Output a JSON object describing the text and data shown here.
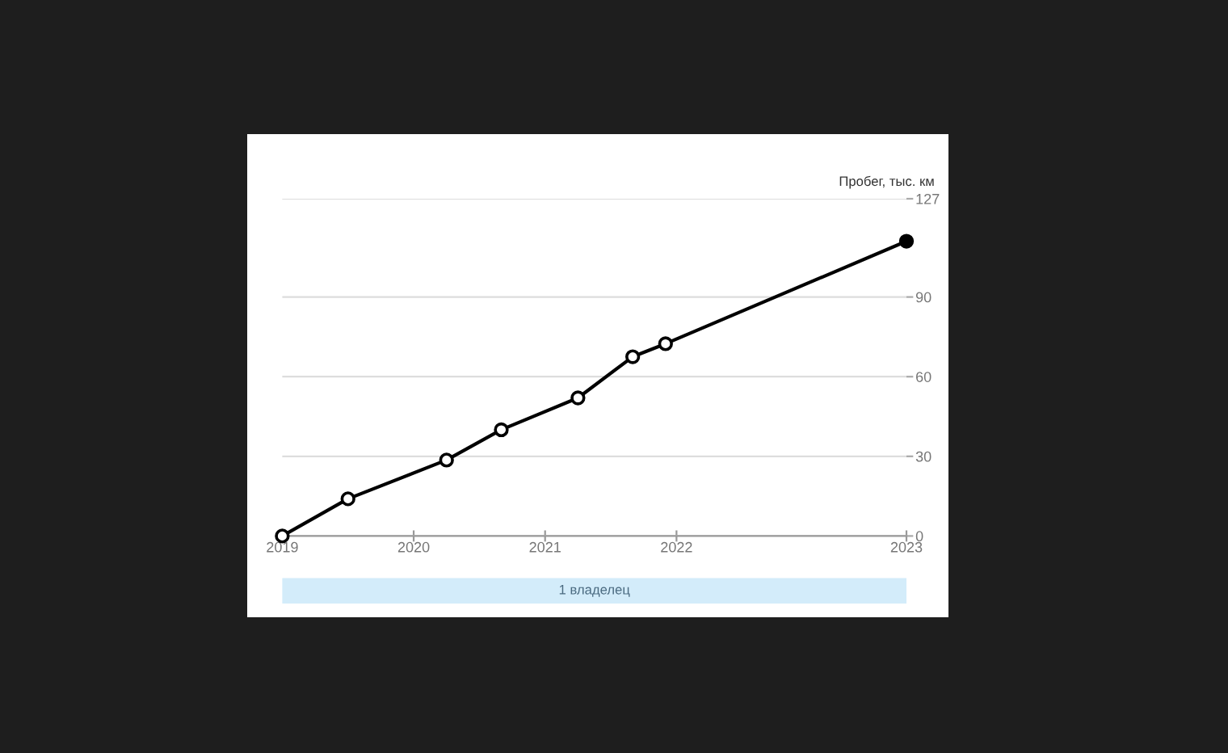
{
  "chart_data": {
    "type": "line",
    "ylabel": "Пробег, тыс. км",
    "x": [
      "2019-01",
      "2019-07",
      "2020-04",
      "2020-09",
      "2021-04",
      "2021-09",
      "2021-12",
      "2023-10"
    ],
    "series": [
      {
        "color": "#000000",
        "values": [
          0,
          14,
          28.6,
          40,
          52,
          67.5,
          72.4,
          111
        ],
        "colors": [
          "#ffffff",
          "#ffffff",
          "#ffffff",
          "#ffffff",
          "#ffffff",
          "#ffffff",
          "#ffffff",
          "#000000"
        ]
      }
    ],
    "xlim": [
      "2019-01",
      "2023-10"
    ],
    "xticks": [
      "2019",
      "2020",
      "2021",
      "2022",
      {
        "value": "2023-10",
        "label": "2023"
      }
    ],
    "ylim": [
      0,
      127
    ],
    "yticks": [
      0,
      30,
      60,
      90,
      127
    ],
    "bands": [
      {
        "axis": "x",
        "from": "2019-01",
        "to": "2023-10",
        "label": "1 владелец"
      }
    ],
    "grid": "y",
    "marker": "circle",
    "line_style": "solid"
  }
}
